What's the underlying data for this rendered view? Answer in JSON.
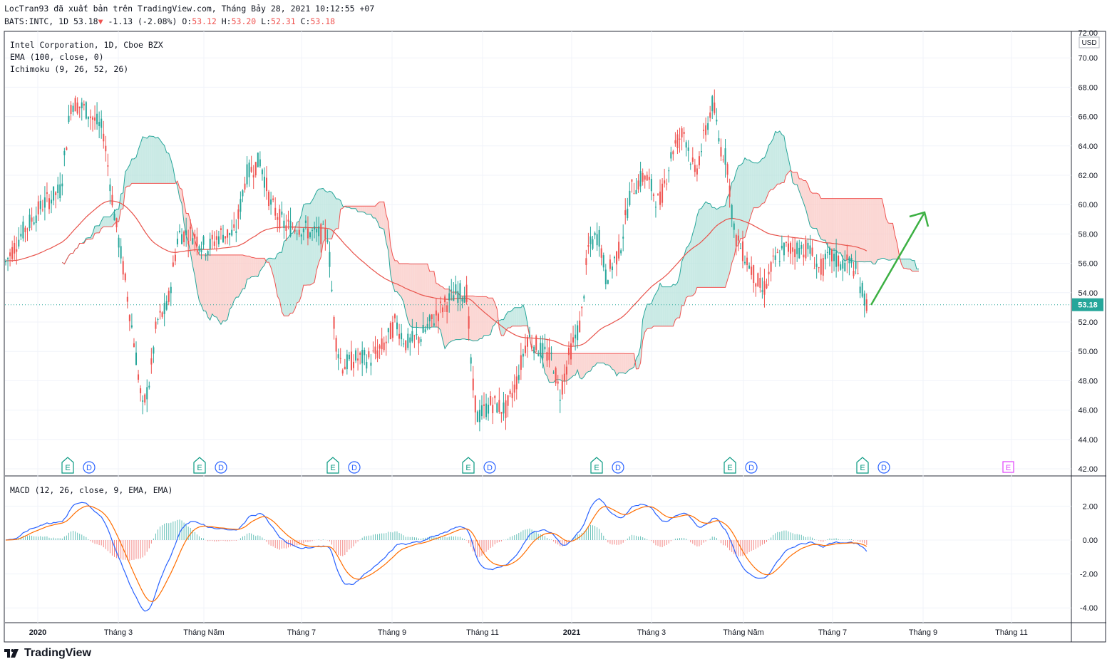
{
  "header": {
    "line1": "LocTran93 đã xuất bản trên TradingView.com, Tháng Bảy 28, 2021 10:12:55 +07",
    "symbol": "BATS:INTC, 1D",
    "last": "53.18",
    "change": "-1.13 (-2.08%)",
    "ohlc_labels": [
      "O:",
      "H:",
      "L:",
      "C:"
    ],
    "ohlc_values": [
      "53.12",
      "53.20",
      "52.31",
      "53.18"
    ]
  },
  "legend": {
    "title": "Intel Corporation, 1D, Cboe BZX",
    "ema": "EMA (100, close, 0)",
    "ichimoku": "Ichimoku (9, 26, 52, 26)",
    "macd": "MACD (12, 26, close, 9, EMA, EMA)"
  },
  "price_axis": {
    "currency": "USD",
    "top_label": "72.00",
    "ticks": [
      "70.00",
      "68.00",
      "66.00",
      "64.00",
      "62.00",
      "60.00",
      "58.00",
      "56.00",
      "54.00",
      "52.00",
      "50.00",
      "48.00",
      "46.00",
      "44.00",
      "42.00"
    ],
    "last_price_label": "53.18"
  },
  "macd_axis": {
    "ticks": [
      "2.00",
      "0.00",
      "-2.00",
      "-4.00"
    ]
  },
  "time_axis": {
    "labels": [
      "2020",
      "Tháng 3",
      "Tháng Năm",
      "Tháng 7",
      "Tháng 9",
      "Tháng 11",
      "2021",
      "Tháng 3",
      "Tháng Năm",
      "Tháng 7",
      "Tháng 9",
      "Tháng 11"
    ],
    "bold": [
      "2020",
      "2021"
    ]
  },
  "events": {
    "earnings_letter": "E",
    "dividend_letter": "D",
    "count_pairs": 7
  },
  "colors": {
    "up": "#26a69a",
    "down": "#ef5350",
    "ema": "#e8524a",
    "cloud_bull": "#b8e3dc",
    "cloud_bear": "#f9c9c6",
    "macd_line": "#2962ff",
    "signal_line": "#ff6d00",
    "arrow": "#3cb043",
    "last_price_bg": "#26a69a"
  },
  "chart_data": {
    "type": "candlestick",
    "symbol": "BATS:INTC",
    "interval": "1D",
    "ylim": [
      42,
      72
    ],
    "macd_ylim": [
      -4.5,
      3
    ],
    "last_close": 53.18,
    "open": 53.12,
    "high": 53.2,
    "low": 52.31,
    "close": 53.18,
    "monthly_closes": [
      {
        "t": "2020-01",
        "v": 60.0
      },
      {
        "t": "2020-02",
        "v": 63.5
      },
      {
        "t": "2020-03",
        "v": 47.0
      },
      {
        "t": "2020-04",
        "v": 60.5
      },
      {
        "t": "2020-05",
        "v": 62.5
      },
      {
        "t": "2020-06",
        "v": 59.0
      },
      {
        "t": "2020-07",
        "v": 49.0
      },
      {
        "t": "2020-08",
        "v": 51.0
      },
      {
        "t": "2020-09",
        "v": 51.5
      },
      {
        "t": "2020-10",
        "v": 54.5
      },
      {
        "t": "2020-11",
        "v": 46.5
      },
      {
        "t": "2020-12",
        "v": 50.5
      },
      {
        "t": "2021-01",
        "v": 56.0
      },
      {
        "t": "2021-02",
        "v": 61.0
      },
      {
        "t": "2021-03",
        "v": 64.0
      },
      {
        "t": "2021-04",
        "v": 60.5
      },
      {
        "t": "2021-05",
        "v": 56.5
      },
      {
        "t": "2021-06",
        "v": 56.5
      },
      {
        "t": "2021-07",
        "v": 53.18
      }
    ]
  }
}
